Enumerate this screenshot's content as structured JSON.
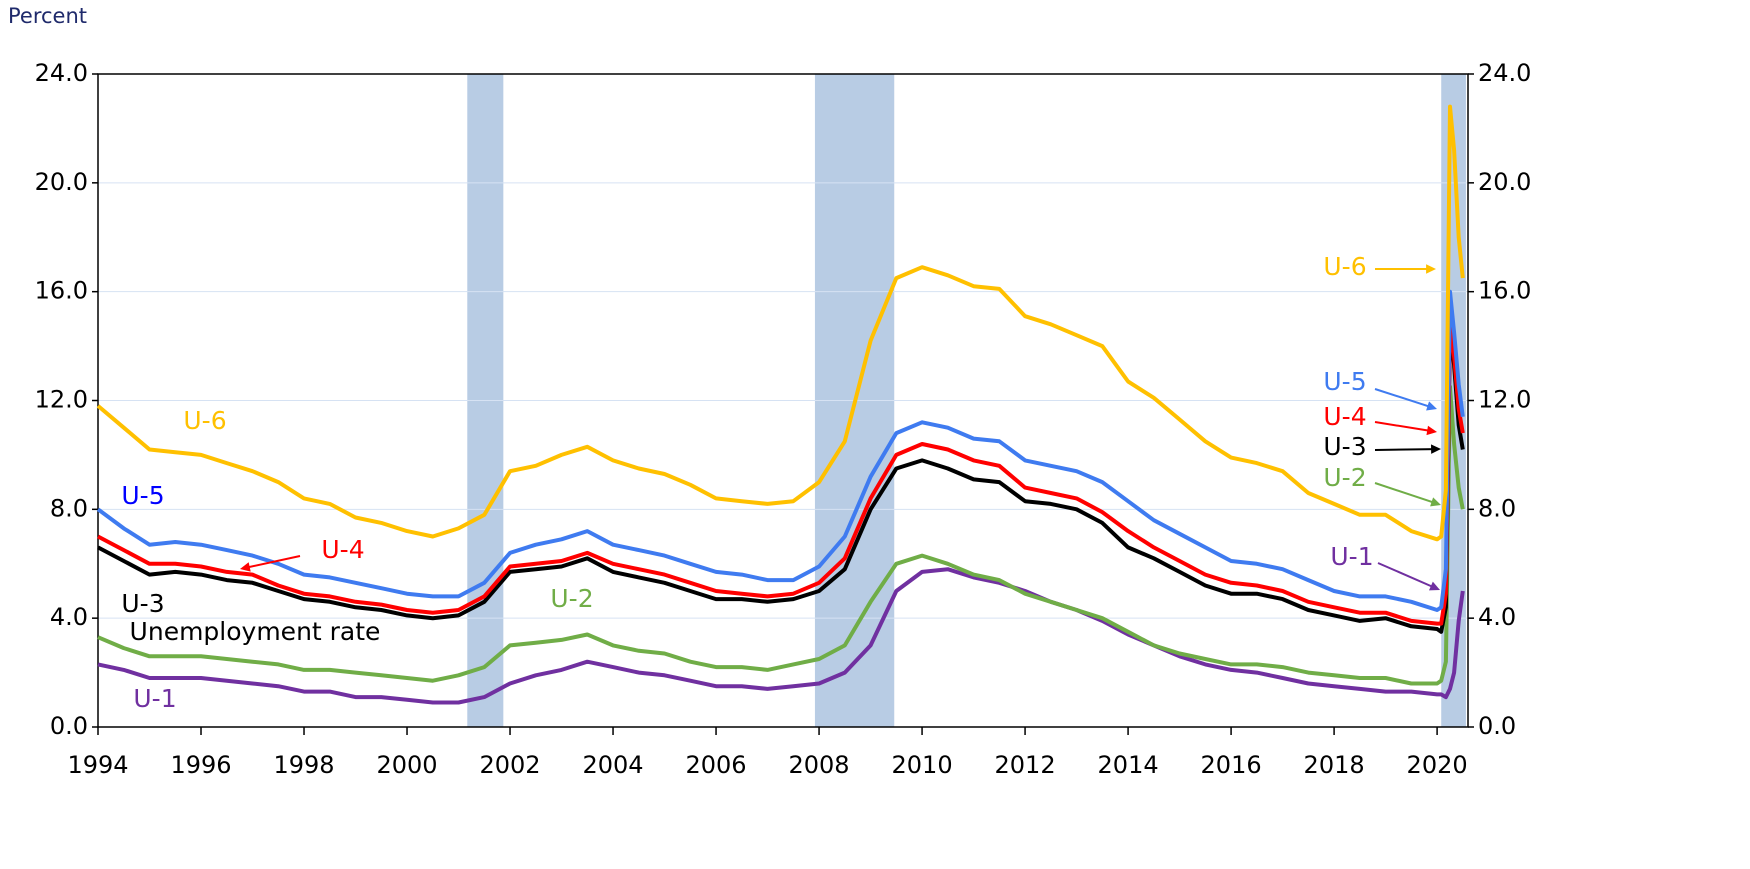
{
  "chart_data": {
    "type": "line",
    "y_label": "Percent",
    "x": [
      1994,
      1994.5,
      1995,
      1995.5,
      1996,
      1996.5,
      1997,
      1997.5,
      1998,
      1998.5,
      1999,
      1999.5,
      2000,
      2000.5,
      2001,
      2001.5,
      2002,
      2002.5,
      2003,
      2003.5,
      2004,
      2004.5,
      2005,
      2005.5,
      2006,
      2006.5,
      2007,
      2007.5,
      2008,
      2008.5,
      2009,
      2009.5,
      2010,
      2010.5,
      2011,
      2011.5,
      2012,
      2012.5,
      2013,
      2013.5,
      2014,
      2014.5,
      2015,
      2015.5,
      2016,
      2016.5,
      2017,
      2017.5,
      2018,
      2018.5,
      2019,
      2019.5,
      2020,
      2020.08,
      2020.17,
      2020.25,
      2020.33,
      2020.42,
      2020.5
    ],
    "xlim": [
      1994,
      2020.6
    ],
    "xticks": [
      1994,
      1996,
      1998,
      2000,
      2002,
      2004,
      2006,
      2008,
      2010,
      2012,
      2014,
      2016,
      2018,
      2020
    ],
    "ylim": [
      0,
      24
    ],
    "yticks": [
      {
        "value": 0,
        "label": "0.0"
      },
      {
        "value": 4,
        "label": "4.0"
      },
      {
        "value": 8,
        "label": "8.0"
      },
      {
        "value": 12,
        "label": "12.0"
      },
      {
        "value": 16,
        "label": "16.0"
      },
      {
        "value": 20,
        "label": "20.0"
      },
      {
        "value": 24,
        "label": "24.0"
      }
    ],
    "y2lim": [
      0,
      24
    ],
    "y2ticks": [
      {
        "value": 0,
        "label": "0.0"
      },
      {
        "value": 4,
        "label": "4.0"
      },
      {
        "value": 8,
        "label": "8.0"
      },
      {
        "value": 12,
        "label": "12.0"
      },
      {
        "value": 16,
        "label": "16.0"
      },
      {
        "value": 20,
        "label": "20.0"
      },
      {
        "value": 24,
        "label": "24.0"
      }
    ],
    "grid": true,
    "shaded_regions": [
      [
        2001.17,
        2001.87
      ],
      [
        2007.92,
        2009.46
      ],
      [
        2020.08,
        2020.56
      ]
    ],
    "shade_color": "#b8cce4",
    "series": [
      {
        "name": "U-6",
        "color": "#ffc000",
        "values": [
          11.8,
          11.0,
          10.2,
          10.1,
          10.0,
          9.7,
          9.4,
          9.0,
          8.4,
          8.2,
          7.7,
          7.5,
          7.2,
          7.0,
          7.3,
          7.8,
          9.4,
          9.6,
          10.0,
          10.3,
          9.8,
          9.5,
          9.3,
          8.9,
          8.4,
          8.3,
          8.2,
          8.3,
          9.0,
          10.5,
          14.2,
          16.5,
          16.9,
          16.6,
          16.2,
          16.1,
          15.1,
          14.8,
          14.4,
          14.0,
          12.7,
          12.1,
          11.3,
          10.5,
          9.9,
          9.7,
          9.4,
          8.6,
          8.2,
          7.8,
          7.8,
          7.2,
          6.9,
          7.0,
          8.7,
          22.8,
          21.2,
          18.0,
          16.5
        ]
      },
      {
        "name": "U-5",
        "color": "#3f7bf0",
        "values": [
          8.0,
          7.3,
          6.7,
          6.8,
          6.7,
          6.5,
          6.3,
          6.0,
          5.6,
          5.5,
          5.3,
          5.1,
          4.9,
          4.8,
          4.8,
          5.3,
          6.4,
          6.7,
          6.9,
          7.2,
          6.7,
          6.5,
          6.3,
          6.0,
          5.7,
          5.6,
          5.4,
          5.4,
          5.9,
          7.0,
          9.2,
          10.8,
          11.2,
          11.0,
          10.6,
          10.5,
          9.8,
          9.6,
          9.4,
          9.0,
          8.3,
          7.6,
          7.1,
          6.6,
          6.1,
          6.0,
          5.8,
          5.4,
          5.0,
          4.8,
          4.8,
          4.6,
          4.3,
          4.4,
          5.8,
          16.0,
          14.5,
          12.6,
          11.4
        ]
      },
      {
        "name": "U-4",
        "color": "#ff0000",
        "values": [
          7.0,
          6.5,
          6.0,
          6.0,
          5.9,
          5.7,
          5.6,
          5.2,
          4.9,
          4.8,
          4.6,
          4.5,
          4.3,
          4.2,
          4.3,
          4.8,
          5.9,
          6.0,
          6.1,
          6.4,
          6.0,
          5.8,
          5.6,
          5.3,
          5.0,
          4.9,
          4.8,
          4.9,
          5.3,
          6.2,
          8.4,
          10.0,
          10.4,
          10.2,
          9.8,
          9.6,
          8.8,
          8.6,
          8.4,
          7.9,
          7.2,
          6.6,
          6.1,
          5.6,
          5.3,
          5.2,
          5.0,
          4.6,
          4.4,
          4.2,
          4.2,
          3.9,
          3.8,
          3.8,
          4.9,
          15.0,
          13.6,
          11.7,
          10.8
        ]
      },
      {
        "name": "U-3",
        "color": "#000000",
        "values": [
          6.6,
          6.1,
          5.6,
          5.7,
          5.6,
          5.4,
          5.3,
          5.0,
          4.7,
          4.6,
          4.4,
          4.3,
          4.1,
          4.0,
          4.1,
          4.6,
          5.7,
          5.8,
          5.9,
          6.2,
          5.7,
          5.5,
          5.3,
          5.0,
          4.7,
          4.7,
          4.6,
          4.7,
          5.0,
          5.8,
          8.0,
          9.5,
          9.8,
          9.5,
          9.1,
          9.0,
          8.3,
          8.2,
          8.0,
          7.5,
          6.6,
          6.2,
          5.7,
          5.2,
          4.9,
          4.9,
          4.7,
          4.3,
          4.1,
          3.9,
          4.0,
          3.7,
          3.6,
          3.5,
          4.4,
          14.7,
          13.3,
          11.1,
          10.2
        ]
      },
      {
        "name": "U-2",
        "color": "#70ad47",
        "values": [
          3.3,
          2.9,
          2.6,
          2.6,
          2.6,
          2.5,
          2.4,
          2.3,
          2.1,
          2.1,
          2.0,
          1.9,
          1.8,
          1.7,
          1.9,
          2.2,
          3.0,
          3.1,
          3.2,
          3.4,
          3.0,
          2.8,
          2.7,
          2.4,
          2.2,
          2.2,
          2.1,
          2.3,
          2.5,
          3.0,
          4.6,
          6.0,
          6.3,
          6.0,
          5.6,
          5.4,
          4.9,
          4.6,
          4.3,
          4.0,
          3.5,
          3.0,
          2.7,
          2.5,
          2.3,
          2.3,
          2.2,
          2.0,
          1.9,
          1.8,
          1.8,
          1.6,
          1.6,
          1.7,
          2.4,
          12.5,
          10.4,
          8.8,
          8.0
        ]
      },
      {
        "name": "U-1",
        "color": "#7030a0",
        "values": [
          2.3,
          2.1,
          1.8,
          1.8,
          1.8,
          1.7,
          1.6,
          1.5,
          1.3,
          1.3,
          1.1,
          1.1,
          1.0,
          0.9,
          0.9,
          1.1,
          1.6,
          1.9,
          2.1,
          2.4,
          2.2,
          2.0,
          1.9,
          1.7,
          1.5,
          1.5,
          1.4,
          1.5,
          1.6,
          2.0,
          3.0,
          5.0,
          5.7,
          5.8,
          5.5,
          5.3,
          5.0,
          4.6,
          4.3,
          3.9,
          3.4,
          3.0,
          2.6,
          2.3,
          2.1,
          2.0,
          1.8,
          1.6,
          1.5,
          1.4,
          1.3,
          1.3,
          1.2,
          1.2,
          1.1,
          1.4,
          2.0,
          3.9,
          5.0
        ]
      }
    ],
    "annotations": [
      {
        "text": "U-6",
        "color": "#ffc000"
      },
      {
        "text": "U-5",
        "color": "#0000ff"
      },
      {
        "text": "U-4",
        "color": "#ff0000"
      },
      {
        "text": "U-3",
        "color": "#000000"
      },
      {
        "text": "Unemployment rate",
        "color": "#000000"
      },
      {
        "text": "U-2",
        "color": "#70ad47"
      },
      {
        "text": "U-1",
        "color": "#7030a0"
      },
      {
        "text": "U-6",
        "color": "#ffc000"
      },
      {
        "text": "U-5",
        "color": "#3f7bf0"
      },
      {
        "text": "U-4",
        "color": "#ff0000"
      },
      {
        "text": "U-3",
        "color": "#000000"
      },
      {
        "text": "U-2",
        "color": "#70ad47"
      },
      {
        "text": "U-1",
        "color": "#7030a0"
      }
    ]
  }
}
